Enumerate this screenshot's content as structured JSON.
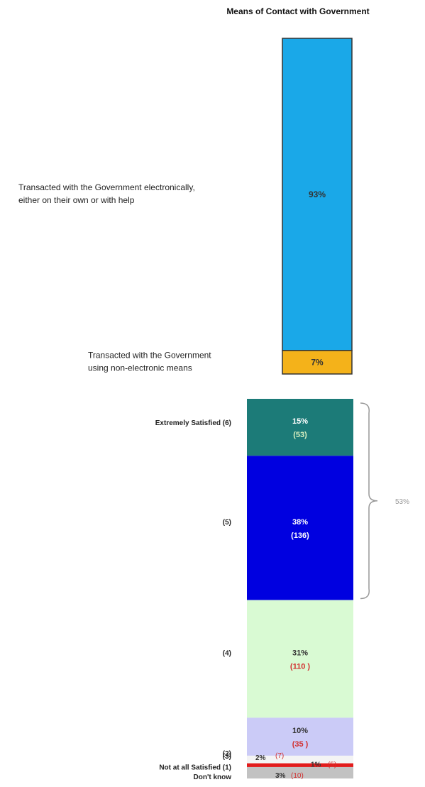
{
  "chart_data": [
    {
      "type": "bar",
      "subtype": "stacked",
      "title": "Means of Contact with Government",
      "segments": [
        {
          "label_lines": [
            "Transacted with the Government electronically,",
            "either on their own or with help"
          ],
          "value": 93,
          "value_label": "93%",
          "color": "#1aa8e8"
        },
        {
          "label_lines": [
            "Transacted with the Government",
            "using non-electronic means"
          ],
          "value": 7,
          "value_label": "7%",
          "color": "#f4b21a"
        }
      ]
    },
    {
      "type": "bar",
      "subtype": "stacked",
      "segments": [
        {
          "label": "Extremely Satisfied (6)",
          "value": 15,
          "value_label": "15%",
          "count_label": "(53)",
          "color": "#1c7b78",
          "text_color": "#ffffff",
          "count_color": "#d8f0c0"
        },
        {
          "label": "(5)",
          "value": 38,
          "value_label": "38%",
          "count_label": "(136)",
          "color": "#0000e0",
          "text_color": "#ffffff",
          "count_color": "#ffffff"
        },
        {
          "label": "(4)",
          "value": 31,
          "value_label": "31%",
          "count_label": "(110 )",
          "color": "#d9fad3",
          "text_color": "#333333",
          "count_color": "#d23030"
        },
        {
          "label": "(3)",
          "value": 10,
          "value_label": "10%",
          "count_label": "(35 )",
          "color": "#cbcbf7",
          "text_color": "#333333",
          "count_color": "#d23030"
        },
        {
          "label": "(2)",
          "value": 2,
          "value_label": "2%",
          "count_label": "(7)",
          "color": "#f4f4f4",
          "text_color": "#333333",
          "count_color": "#d23030"
        },
        {
          "label": "Not at all Satisfied (1)",
          "value": 1,
          "value_label": "1%",
          "count_label": "(5)",
          "color": "#e21c1c",
          "text_color": "#333333",
          "count_color": "#d23030"
        },
        {
          "label": "Don't know",
          "value": 3,
          "value_label": "3%",
          "count_label": "(10)",
          "color": "#c2c2c2",
          "text_color": "#333333",
          "count_color": "#d23030"
        }
      ],
      "bracket_label": "53%",
      "colors": {
        "bracket": "#999999",
        "bracket_text": "#999999"
      }
    }
  ]
}
